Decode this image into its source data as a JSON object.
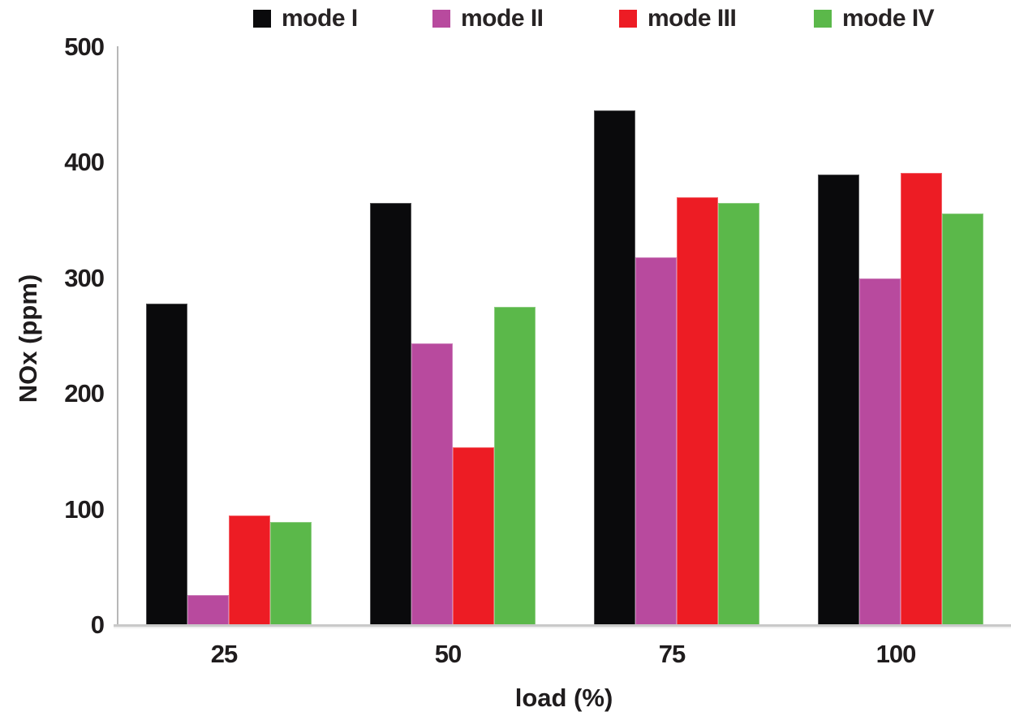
{
  "chart_data": {
    "type": "bar",
    "title": "",
    "xlabel": "load (%)",
    "ylabel": "NOx (ppm)",
    "categories": [
      "25",
      "50",
      "75",
      "100"
    ],
    "series": [
      {
        "name": "mode I",
        "color": "#0a0a0c",
        "values": [
          278,
          365,
          445,
          390
        ]
      },
      {
        "name": "mode II",
        "color": "#b84a9e",
        "values": [
          26,
          244,
          318,
          300
        ]
      },
      {
        "name": "mode III",
        "color": "#ed1c24",
        "values": [
          95,
          154,
          370,
          391
        ]
      },
      {
        "name": "mode IV",
        "color": "#5bb84a",
        "values": [
          89,
          275,
          365,
          356
        ]
      }
    ],
    "ylim": [
      0,
      500
    ],
    "yticks": [
      0,
      100,
      200,
      300,
      400,
      500
    ],
    "grid": false,
    "legend_position": "top"
  },
  "axes": {
    "x_title": "load (%)",
    "y_title": "NOx (ppm)"
  },
  "colors": {
    "axis_line": "#b7b7b7",
    "baseline": "#c9c9c9",
    "text": "#1f1c1d"
  }
}
